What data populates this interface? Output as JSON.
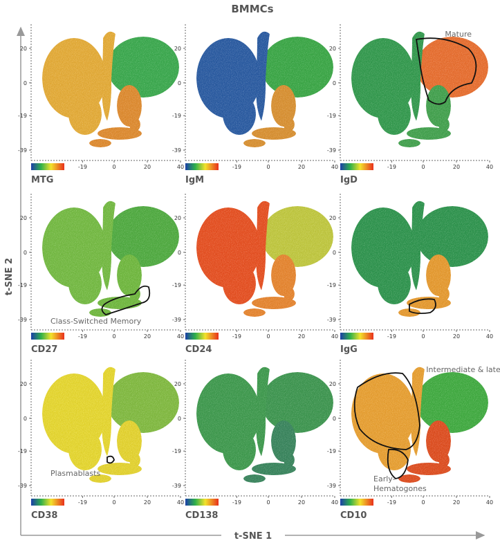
{
  "title": "BMMCs",
  "x_axis_label": "t-SNE 1",
  "y_axis_label": "t-SNE 2",
  "axes": {
    "xlim": [
      -50,
      40
    ],
    "ylim": [
      -45,
      34
    ],
    "xticks": [
      -19,
      0,
      20,
      40
    ],
    "yticks": [
      20,
      0,
      -19,
      -39
    ]
  },
  "panels": [
    {
      "label": "MTG",
      "annotations": []
    },
    {
      "label": "IgM",
      "annotations": []
    },
    {
      "label": "IgD",
      "annotations": [
        "Mature"
      ]
    },
    {
      "label": "CD27",
      "annotations": [
        "Class-Switched Memory"
      ]
    },
    {
      "label": "CD24",
      "annotations": []
    },
    {
      "label": "IgG",
      "annotations": []
    },
    {
      "label": "CD38",
      "annotations": [
        "Plasmablasts"
      ]
    },
    {
      "label": "CD138",
      "annotations": []
    },
    {
      "label": "CD10",
      "annotations": [
        "Intermediate & late-",
        "Early-",
        "Hematogones"
      ]
    }
  ]
}
